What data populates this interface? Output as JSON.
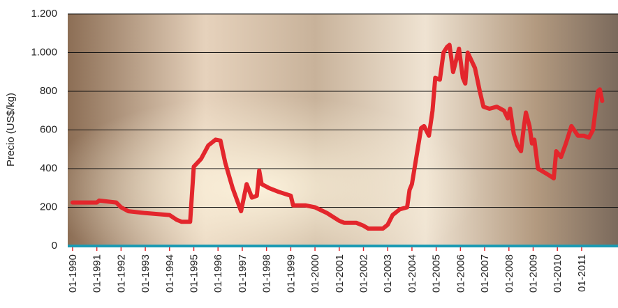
{
  "chart_data": {
    "type": "line",
    "y_label": "Precio (US$/kg)",
    "color": "#e3262c",
    "x": [
      1990.0,
      1991.0,
      1991.1,
      1991.8,
      1992.0,
      1992.3,
      1993.0,
      1994.0,
      1994.3,
      1994.5,
      1994.85,
      1995.0,
      1995.3,
      1995.6,
      1995.9,
      1996.1,
      1996.3,
      1996.6,
      1996.95,
      1997.18,
      1997.4,
      1997.6,
      1997.7,
      1997.8,
      1998.1,
      1998.5,
      1999.0,
      1999.1,
      1999.6,
      2000.0,
      2000.5,
      2001.0,
      2001.2,
      2001.7,
      2002.0,
      2002.2,
      2002.8,
      2003.0,
      2003.2,
      2003.5,
      2003.8,
      2003.9,
      2004.0,
      2004.38,
      2004.5,
      2004.7,
      2004.85,
      2004.96,
      2005.15,
      2005.3,
      2005.45,
      2005.55,
      2005.7,
      2005.94,
      2006.1,
      2006.2,
      2006.3,
      2006.6,
      2006.8,
      2006.95,
      2007.2,
      2007.5,
      2007.8,
      2007.95,
      2008.05,
      2008.2,
      2008.35,
      2008.5,
      2008.6,
      2008.7,
      2008.85,
      2008.95,
      2009.05,
      2009.2,
      2009.6,
      2009.85,
      2009.95,
      2010.15,
      2010.35,
      2010.58,
      2010.85,
      2011.1,
      2011.3,
      2011.47,
      2011.67,
      2011.75,
      2011.85
    ],
    "values": [
      225,
      225,
      235,
      225,
      200,
      180,
      170,
      160,
      135,
      125,
      125,
      410,
      450,
      520,
      550,
      545,
      430,
      300,
      180,
      320,
      250,
      260,
      390,
      320,
      300,
      280,
      260,
      210,
      210,
      200,
      170,
      130,
      120,
      120,
      105,
      90,
      90,
      110,
      160,
      190,
      200,
      290,
      320,
      610,
      620,
      570,
      700,
      870,
      860,
      1000,
      1030,
      1040,
      900,
      1020,
      870,
      840,
      1000,
      920,
      800,
      720,
      710,
      720,
      700,
      660,
      710,
      580,
      520,
      490,
      600,
      690,
      620,
      530,
      550,
      400,
      370,
      350,
      490,
      460,
      530,
      620,
      570,
      570,
      560,
      600,
      800,
      810,
      750
    ],
    "xlim": [
      1989.8,
      2012.5
    ],
    "xticks": [
      {
        "value": 1990,
        "label": "01-1990"
      },
      {
        "value": 1991,
        "label": "01-1991"
      },
      {
        "value": 1992,
        "label": "01-1992"
      },
      {
        "value": 1993,
        "label": "01-1993"
      },
      {
        "value": 1994,
        "label": "01-1994"
      },
      {
        "value": 1995,
        "label": "01-1995"
      },
      {
        "value": 1996,
        "label": "01-1996"
      },
      {
        "value": 1997,
        "label": "01-1997"
      },
      {
        "value": 1998,
        "label": "01-1998"
      },
      {
        "value": 1999,
        "label": "01-1999"
      },
      {
        "value": 2000,
        "label": "01-2000"
      },
      {
        "value": 2001,
        "label": "01-2001"
      },
      {
        "value": 2002,
        "label": "01-2002"
      },
      {
        "value": 2003,
        "label": "01-2003"
      },
      {
        "value": 2004,
        "label": "01-2004"
      },
      {
        "value": 2005,
        "label": "01-2005"
      },
      {
        "value": 2006,
        "label": "01-2006"
      },
      {
        "value": 2007,
        "label": "01-2007"
      },
      {
        "value": 2008,
        "label": "01-2008"
      },
      {
        "value": 2009,
        "label": "01-2009"
      },
      {
        "value": 2010,
        "label": "01-2010"
      },
      {
        "value": 2011,
        "label": "01-2011"
      }
    ],
    "ylim": [
      0,
      1200
    ],
    "yticks": [
      0,
      200,
      400,
      600,
      800,
      {
        "value": 1000,
        "label": "1.000"
      },
      {
        "value": 1200,
        "label": "1.200"
      }
    ],
    "grid": true
  }
}
